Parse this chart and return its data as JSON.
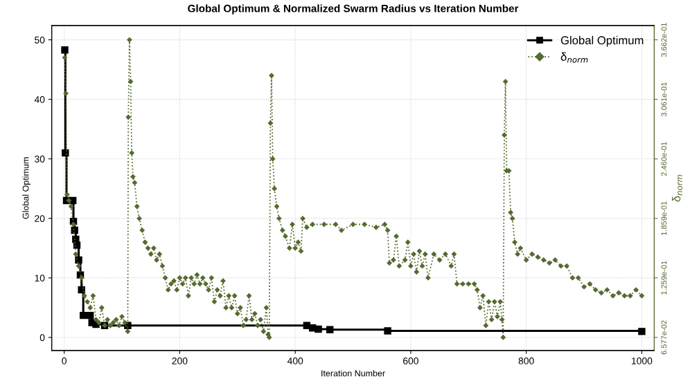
{
  "chart_data": {
    "type": "line",
    "title": "Global Optimum & Normalized Swarm Radius vs Iteration Number",
    "xlabel": "Iteration Number",
    "ylabel": "Global Optimum",
    "y2label": "δ$_{norm}$",
    "xlim": [
      -21.6,
      1021.6
    ],
    "xticks": [
      0,
      200,
      400,
      600,
      800,
      1000
    ],
    "ylim": [
      -2.2,
      52.4
    ],
    "yticks": [
      0,
      10,
      20,
      30,
      40,
      50
    ],
    "y2lim": [
      0.05255,
      0.38062
    ],
    "y2ticks": [
      {
        "value": 0.06577,
        "label": "6.577e-02"
      },
      {
        "value": 0.1259,
        "label": "1.259e-01"
      },
      {
        "value": 0.1859,
        "label": "1.859e-01"
      },
      {
        "value": 0.246,
        "label": "2.460e-01"
      },
      {
        "value": 0.3061,
        "label": "3.061e-01"
      },
      {
        "value": 0.3662,
        "label": "3.662e-01"
      }
    ],
    "grid": true,
    "legend": "top right",
    "series": [
      {
        "name": "Global Optimum",
        "type": "step",
        "color": "#000000",
        "marker": "square",
        "line_style": "solid",
        "x": [
          1,
          2,
          4,
          15,
          16,
          18,
          20,
          22,
          25,
          28,
          30,
          33,
          45,
          48,
          55,
          70,
          110,
          420,
          430,
          440,
          460,
          560,
          1000
        ],
        "values": [
          48.3,
          31,
          23,
          23,
          19.5,
          18,
          16.5,
          15.5,
          13,
          10.5,
          8,
          3.7,
          3.7,
          2.5,
          2.2,
          2.0,
          2.0,
          2.0,
          1.6,
          1.4,
          1.3,
          1.1,
          1.0
        ]
      },
      {
        "name": "δ$_{norm}$",
        "axis": "y2",
        "color": "#556b2f",
        "marker": "diamond",
        "line_style": "dotted",
        "x": [
          1,
          3,
          5,
          8,
          12,
          16,
          20,
          25,
          30,
          35,
          40,
          45,
          50,
          55,
          60,
          65,
          70,
          75,
          80,
          85,
          90,
          95,
          100,
          105,
          110,
          111,
          113,
          115,
          117,
          119,
          122,
          126,
          130,
          135,
          140,
          145,
          150,
          155,
          160,
          165,
          170,
          175,
          180,
          185,
          190,
          195,
          200,
          205,
          210,
          215,
          220,
          225,
          230,
          235,
          240,
          245,
          250,
          255,
          260,
          265,
          270,
          275,
          280,
          285,
          290,
          295,
          300,
          305,
          310,
          315,
          320,
          325,
          330,
          335,
          340,
          345,
          350,
          353,
          355,
          357,
          359,
          361,
          364,
          368,
          372,
          378,
          383,
          390,
          395,
          400,
          405,
          410,
          413,
          420,
          430,
          450,
          470,
          480,
          500,
          520,
          540,
          555,
          560,
          563,
          570,
          575,
          580,
          590,
          595,
          600,
          605,
          610,
          615,
          620,
          625,
          630,
          640,
          650,
          660,
          670,
          675,
          680,
          690,
          700,
          710,
          715,
          720,
          725,
          730,
          735,
          740,
          745,
          750,
          755,
          758,
          760,
          762,
          764,
          766,
          770,
          773,
          776,
          780,
          785,
          790,
          800,
          810,
          820,
          830,
          840,
          850,
          860,
          870,
          880,
          890,
          900,
          910,
          920,
          930,
          940,
          950,
          960,
          970,
          980,
          990,
          1000
        ],
        "values": [
          0.3482,
          0.3121,
          0.21,
          0.204,
          0.198,
          0.1799,
          0.1499,
          0.1379,
          0.1259,
          0.1078,
          0.1018,
          0.0958,
          0.1078,
          0.0838,
          0.0808,
          0.0958,
          0.0778,
          0.0838,
          0.0778,
          0.0808,
          0.0838,
          0.0778,
          0.0868,
          0.0808,
          0.0718,
          0.2881,
          0.3662,
          0.3241,
          0.252,
          0.228,
          0.222,
          0.198,
          0.1859,
          0.1739,
          0.1619,
          0.1559,
          0.1499,
          0.1559,
          0.1439,
          0.1499,
          0.1379,
          0.1259,
          0.1138,
          0.1198,
          0.1229,
          0.1138,
          0.1259,
          0.1198,
          0.1259,
          0.1078,
          0.1259,
          0.1198,
          0.1289,
          0.1198,
          0.1259,
          0.1198,
          0.1138,
          0.1259,
          0.1018,
          0.1138,
          0.1078,
          0.1229,
          0.0958,
          0.1078,
          0.0958,
          0.1078,
          0.0898,
          0.0958,
          0.0778,
          0.0838,
          0.1078,
          0.0838,
          0.0898,
          0.0778,
          0.0838,
          0.0718,
          0.0958,
          0.0688,
          0.0658,
          0.2821,
          0.3301,
          0.246,
          0.216,
          0.198,
          0.1859,
          0.1739,
          0.1679,
          0.1559,
          0.1799,
          0.1559,
          0.1619,
          0.1529,
          0.1859,
          0.1769,
          0.1799,
          0.1799,
          0.1799,
          0.1739,
          0.1799,
          0.1799,
          0.1769,
          0.1799,
          0.1739,
          0.1409,
          0.1439,
          0.1679,
          0.1379,
          0.1439,
          0.1619,
          0.1379,
          0.1499,
          0.1319,
          0.1529,
          0.1379,
          0.1499,
          0.1259,
          0.1499,
          0.1439,
          0.1499,
          0.1379,
          0.1499,
          0.1198,
          0.1198,
          0.1198,
          0.1198,
          0.1138,
          0.0958,
          0.1078,
          0.0778,
          0.1018,
          0.0838,
          0.1018,
          0.0868,
          0.1018,
          0.0838,
          0.0658,
          0.2701,
          0.3241,
          0.234,
          0.234,
          0.1919,
          0.1859,
          0.1619,
          0.1499,
          0.1559,
          0.1439,
          0.1499,
          0.1469,
          0.1439,
          0.1409,
          0.1439,
          0.1379,
          0.1379,
          0.1259,
          0.1259,
          0.1168,
          0.1198,
          0.1138,
          0.1108,
          0.1138,
          0.1078,
          0.1108,
          0.1078,
          0.1078,
          0.1138,
          0.1078
        ]
      }
    ]
  }
}
